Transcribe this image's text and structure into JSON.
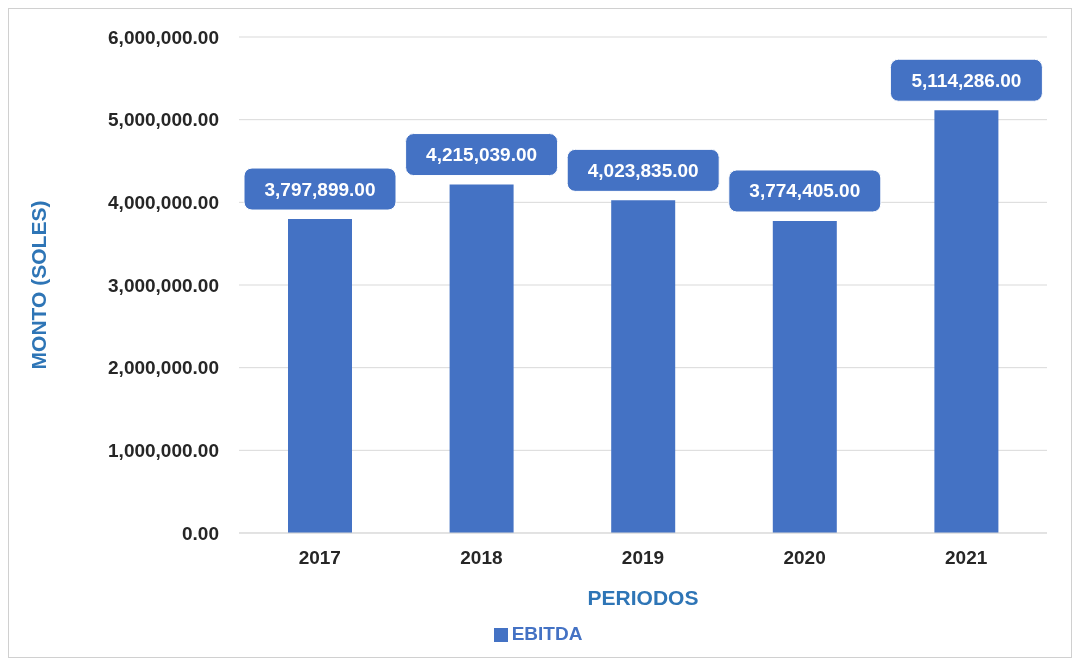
{
  "chart_data": {
    "type": "bar",
    "xlabel": "PERIODOS",
    "ylabel": "MONTO (SOLES)",
    "categories": [
      "2017",
      "2018",
      "2019",
      "2020",
      "2021"
    ],
    "series": [
      {
        "name": "EBITDA",
        "color": "#4472c4",
        "values": [
          3797899,
          4215039,
          4023835,
          3774405,
          5114286
        ],
        "value_labels": [
          "3,797,899.00",
          "4,215,039.00",
          "4,023,835.00",
          "3,774,405.00",
          "5,114,286.00"
        ]
      }
    ],
    "ylim": [
      0,
      6000000
    ],
    "yticks": [
      {
        "value": 0,
        "label": "0.00"
      },
      {
        "value": 1000000,
        "label": "1,000,000.00"
      },
      {
        "value": 2000000,
        "label": "2,000,000.00"
      },
      {
        "value": 3000000,
        "label": "3,000,000.00"
      },
      {
        "value": 4000000,
        "label": "4,000,000.00"
      },
      {
        "value": 5000000,
        "label": "5,000,000.00"
      },
      {
        "value": 6000000,
        "label": "6,000,000.00"
      }
    ],
    "grid": "y",
    "legend": "bottom"
  }
}
